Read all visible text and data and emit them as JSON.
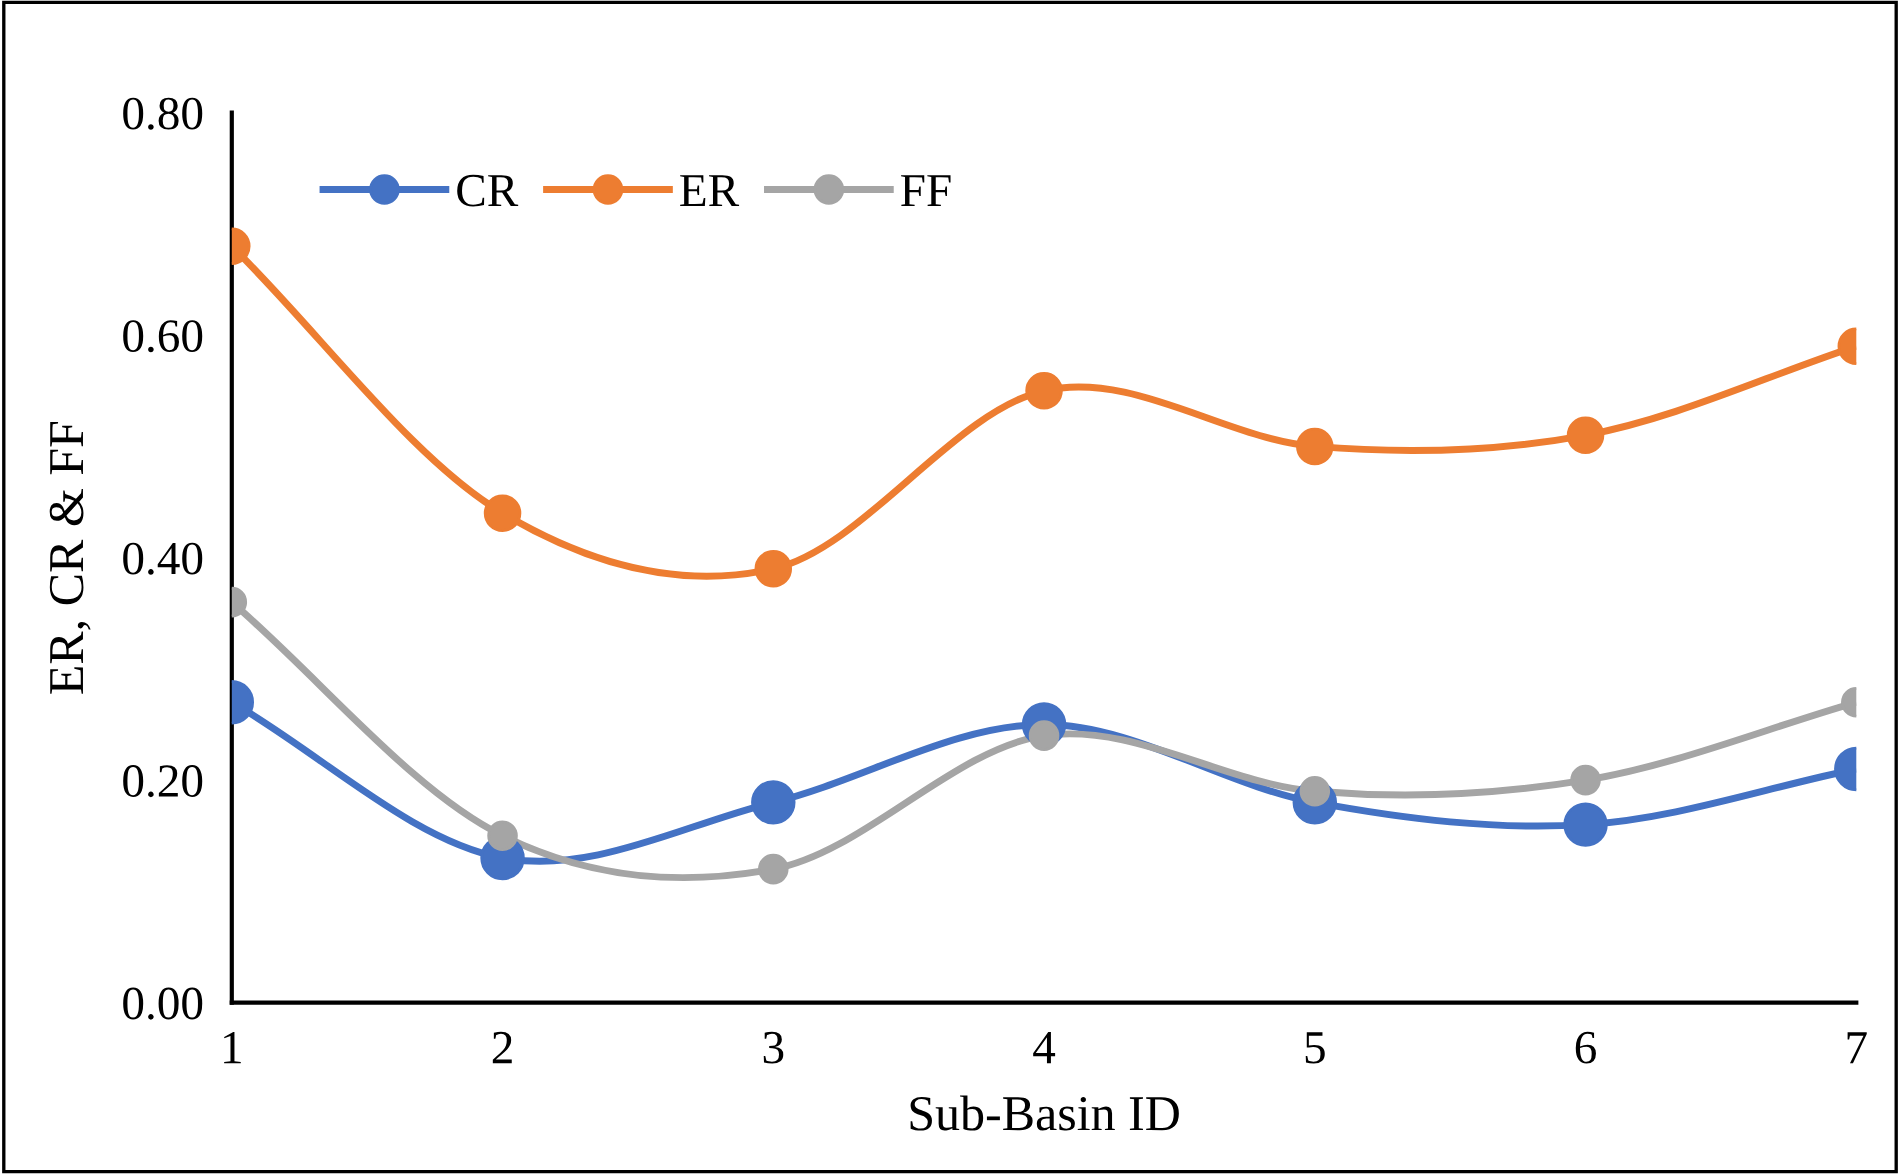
{
  "chart_data": {
    "type": "line",
    "xlabel": "Sub-Basin ID",
    "ylabel": "ER, CR & FF",
    "x": [
      1,
      2,
      3,
      4,
      5,
      6,
      7
    ],
    "series": [
      {
        "name": "CR",
        "color": "#4472c4",
        "values": [
          0.27,
          0.13,
          0.18,
          0.25,
          0.18,
          0.16,
          0.21
        ]
      },
      {
        "name": "ER",
        "color": "#ed7d31",
        "values": [
          0.68,
          0.44,
          0.39,
          0.55,
          0.5,
          0.51,
          0.59
        ]
      },
      {
        "name": "FF",
        "color": "#a5a5a5",
        "values": [
          0.36,
          0.15,
          0.12,
          0.24,
          0.19,
          0.2,
          0.27
        ]
      }
    ],
    "xlim": [
      1,
      7
    ],
    "xticks": [
      1,
      2,
      3,
      4,
      5,
      6,
      7
    ],
    "ylim": [
      0,
      0.8
    ],
    "yticks": [
      {
        "value": 0,
        "label": "0.00"
      },
      {
        "value": 0.2,
        "label": "0.20"
      },
      {
        "value": 0.4,
        "label": "0.40"
      },
      {
        "value": 0.6,
        "label": "0.60"
      },
      {
        "value": 0.8,
        "label": "0.80"
      }
    ],
    "grid": false,
    "legend": "top left",
    "marker": "circle",
    "line_style": "solid"
  }
}
